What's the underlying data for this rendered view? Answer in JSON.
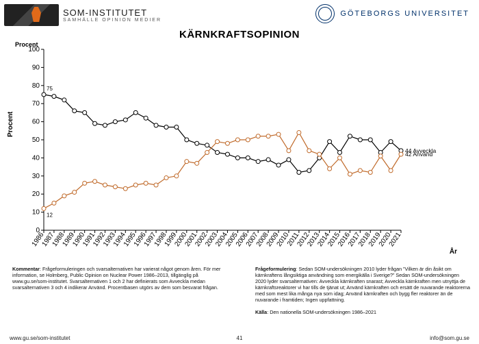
{
  "header": {
    "left_name": "SOM-INSTITUTET",
    "left_tag": "SAMHÄLLE  OPINION  MEDIER",
    "right_name": "GÖTEBORGS UNIVERSITET"
  },
  "title": "KÄRNKRAFTSOPINION",
  "axis": {
    "ylabel": "Procent",
    "plabel": "Procent",
    "xlabel": "År",
    "ylim": [
      0,
      100
    ],
    "ytick_step": 10,
    "years_start": 1986,
    "years_end": 2021
  },
  "series": {
    "avveckla": {
      "label": "Avveckla",
      "color": "#000000",
      "end_value": 44,
      "anno_first": 75,
      "values": [
        75,
        74,
        72,
        66,
        65,
        59,
        58,
        60,
        61,
        65,
        62,
        58,
        57,
        57,
        50,
        48,
        47,
        43,
        42,
        40,
        40,
        38,
        39,
        36,
        39,
        32,
        33,
        40,
        49,
        43,
        52,
        50,
        50,
        43,
        49,
        44
      ]
    },
    "anvand": {
      "label": "Använd",
      "color": "#c06a2a",
      "end_value": 42,
      "anno_first": 12,
      "values": [
        12,
        15,
        19,
        21,
        26,
        27,
        25,
        24,
        23,
        25,
        26,
        25,
        29,
        30,
        38,
        37,
        43,
        49,
        48,
        50,
        50,
        52,
        52,
        53,
        44,
        54,
        44,
        42,
        34,
        40,
        31,
        33,
        32,
        41,
        33,
        42
      ]
    }
  },
  "style": {
    "background": "#ffffff",
    "marker_radius": 3,
    "series1_color": "#000000",
    "series2_color": "#c06a2a",
    "line_width": 1.2
  },
  "notes": {
    "left": "Kommentar: Frågeformuleringen och svarsalternativen har varierat något genom åren. För mer information, se Holmberg, Public Opinion on Nuclear Power 1986–2013, tillgänglig på www.gu.se/som-institutet. Svarsalternativen 1 och 2 har definierats som Avveckla medan svarsalternativen 3 och 4 indikerar Använd. Procentbasen utgörs av dem som besvarat frågan.",
    "right": "Frågeformulering: Sedan SOM-undersökningen 2010 lyder frågan ”Vilken är din åsikt om kärnkraftens långsiktiga användning som energikälla i Sverige?” Sedan SOM-undersökningen 2020 lyder svarsalternativen: Avveckla kärnkraften snarast; Avveckla kärnkraften men utnyttja de kärnkraftsreaktorer vi har tills de tjänat ut; Använd kärnkraften och ersätt de nuvarande reaktorerna med som mest lika många nya som idag; Använd kärnkraften och bygg fler reaktorer än de nuvarande i framtiden; Ingen uppfattning.",
    "source": "Källa: Den nationella SOM-undersökningen 1986–2021"
  },
  "footer": {
    "url": "www.gu.se/som-institutet",
    "page": "41",
    "email": "info@som.gu.se"
  }
}
